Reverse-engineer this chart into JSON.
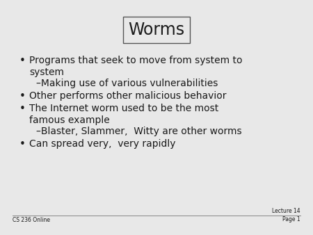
{
  "title": "Worms",
  "bg_color": "#c8c8c8",
  "slide_bg": "#e8e8e8",
  "text_color": "#1a1a1a",
  "bullet_items": [
    {
      "text": "Programs that seek to move from system to\nsystem",
      "level": 0
    },
    {
      "text": "–Making use of various vulnerabilities",
      "level": 1
    },
    {
      "text": "Other performs other malicious behavior",
      "level": 0
    },
    {
      "text": "The Internet worm used to be the most\nfamous example",
      "level": 0
    },
    {
      "text": "–Blaster, Slammer,  Witty are other worms",
      "level": 1
    },
    {
      "text": "Can spread very,  very rapidly",
      "level": 0
    }
  ],
  "footer_left": "CS 236 Online",
  "footer_right_line1": "Lecture 14",
  "footer_right_line2": "Page 1",
  "title_fontsize": 17,
  "bullet_fontsize": 10,
  "footer_fontsize": 5.5
}
